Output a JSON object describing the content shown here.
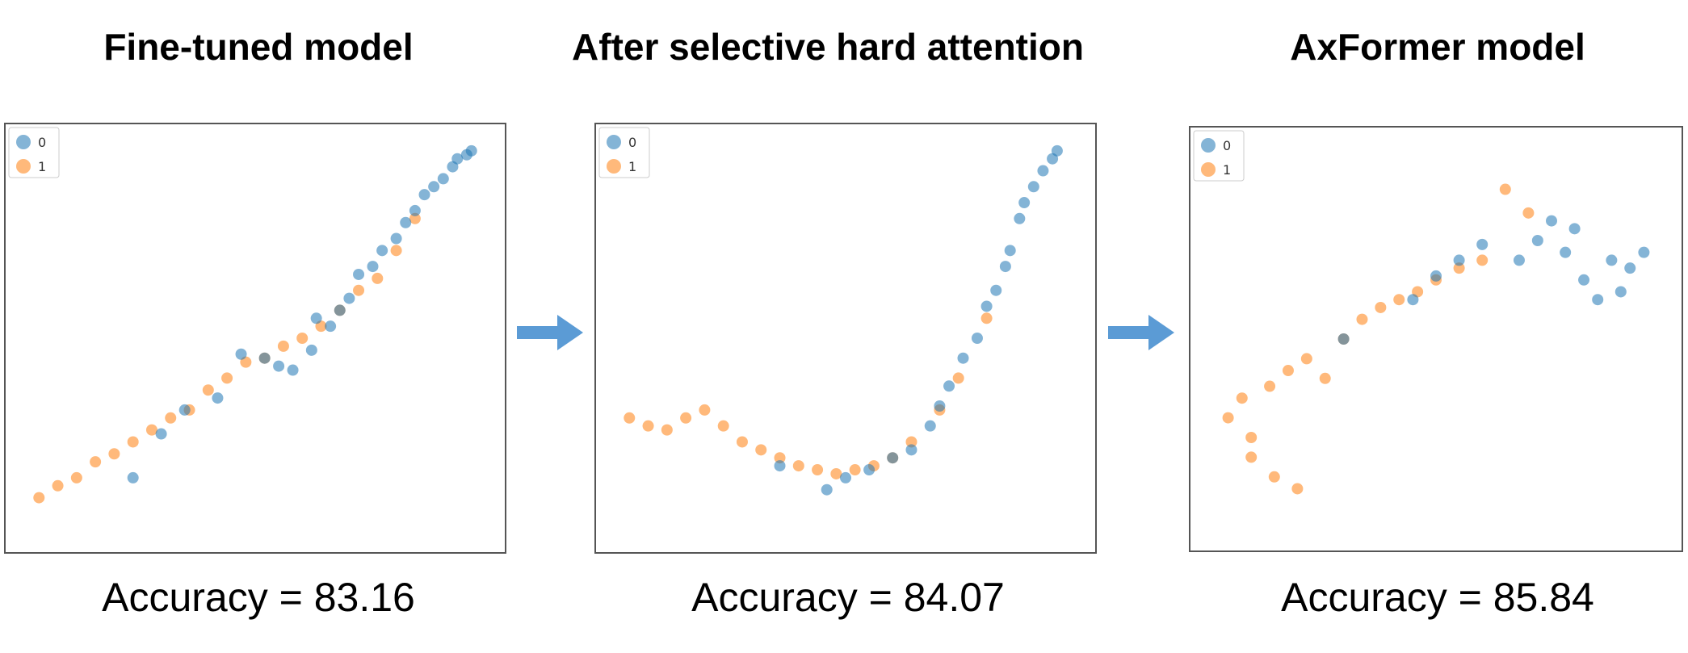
{
  "colors": {
    "class0": "#1f77b4",
    "class1": "#ff7f0e",
    "arrow": "#5b9bd5"
  },
  "panels": [
    {
      "title": "Fine-tuned model",
      "accuracy": "Accuracy = 83.16"
    },
    {
      "title": "After selective hard attention",
      "accuracy": "Accuracy = 84.07"
    },
    {
      "title": "AxFormer model",
      "accuracy": "Accuracy = 85.84"
    }
  ],
  "chart_data": [
    {
      "type": "scatter",
      "title": "Fine-tuned model",
      "legend": {
        "entries": [
          "0",
          "1"
        ],
        "placement": "top-left"
      },
      "xlim": [
        0,
        1
      ],
      "ylim": [
        0,
        1
      ],
      "grid": false,
      "series": [
        {
          "name": "0",
          "color": "#1f77b4",
          "shape": "rising-curve-upper-half",
          "x": [
            0.47,
            0.52,
            0.55,
            0.58,
            0.62,
            0.63,
            0.66,
            0.68,
            0.7,
            0.72,
            0.75,
            0.77,
            0.8,
            0.82,
            0.84,
            0.86,
            0.88,
            0.9,
            0.92,
            0.93,
            0.95,
            0.96,
            0.3,
            0.35,
            0.42,
            0.24
          ],
          "y": [
            0.46,
            0.45,
            0.43,
            0.42,
            0.47,
            0.55,
            0.53,
            0.57,
            0.6,
            0.66,
            0.68,
            0.72,
            0.75,
            0.79,
            0.82,
            0.86,
            0.88,
            0.9,
            0.93,
            0.95,
            0.96,
            0.97,
            0.26,
            0.32,
            0.35,
            0.15
          ]
        },
        {
          "name": "1",
          "color": "#ff7f0e",
          "shape": "rising-curve-lower-half",
          "x": [
            0.04,
            0.08,
            0.12,
            0.16,
            0.2,
            0.24,
            0.28,
            0.32,
            0.36,
            0.4,
            0.44,
            0.48,
            0.52,
            0.56,
            0.6,
            0.64,
            0.68,
            0.72,
            0.76,
            0.8,
            0.84
          ],
          "y": [
            0.1,
            0.13,
            0.15,
            0.19,
            0.21,
            0.24,
            0.27,
            0.3,
            0.32,
            0.37,
            0.4,
            0.44,
            0.45,
            0.48,
            0.5,
            0.53,
            0.57,
            0.62,
            0.65,
            0.72,
            0.8
          ]
        }
      ]
    },
    {
      "type": "scatter",
      "title": "After selective hard attention",
      "legend": {
        "entries": [
          "0",
          "1"
        ],
        "placement": "top-left"
      },
      "xlim": [
        0,
        1
      ],
      "ylim": [
        0,
        1
      ],
      "grid": false,
      "series": [
        {
          "name": "0",
          "color": "#1f77b4",
          "shape": "right-arm-of-u",
          "x": [
            0.5,
            0.55,
            0.6,
            0.64,
            0.68,
            0.7,
            0.72,
            0.75,
            0.78,
            0.8,
            0.82,
            0.84,
            0.85,
            0.87,
            0.88,
            0.9,
            0.92,
            0.94,
            0.95,
            0.36,
            0.46
          ],
          "y": [
            0.15,
            0.17,
            0.2,
            0.22,
            0.28,
            0.33,
            0.38,
            0.45,
            0.5,
            0.58,
            0.62,
            0.68,
            0.72,
            0.8,
            0.84,
            0.88,
            0.92,
            0.95,
            0.97,
            0.18,
            0.12
          ]
        },
        {
          "name": "1",
          "color": "#ff7f0e",
          "shape": "u-bottom-and-left-arm",
          "x": [
            0.04,
            0.08,
            0.12,
            0.16,
            0.2,
            0.24,
            0.28,
            0.32,
            0.36,
            0.4,
            0.44,
            0.48,
            0.52,
            0.56,
            0.6,
            0.64,
            0.7,
            0.74,
            0.8
          ],
          "y": [
            0.3,
            0.28,
            0.27,
            0.3,
            0.32,
            0.28,
            0.24,
            0.22,
            0.2,
            0.18,
            0.17,
            0.16,
            0.17,
            0.18,
            0.2,
            0.24,
            0.32,
            0.4,
            0.55
          ]
        }
      ]
    },
    {
      "type": "scatter",
      "title": "AxFormer model",
      "legend": {
        "entries": [
          "0",
          "1"
        ],
        "placement": "top-left"
      },
      "xlim": [
        0,
        1
      ],
      "ylim": [
        0,
        1
      ],
      "grid": false,
      "series": [
        {
          "name": "0",
          "color": "#1f77b4",
          "shape": "upper-right-cluster",
          "x": [
            0.68,
            0.72,
            0.75,
            0.78,
            0.8,
            0.82,
            0.85,
            0.88,
            0.9,
            0.92,
            0.95,
            0.5,
            0.55,
            0.6,
            0.45,
            0.3
          ],
          "y": [
            0.7,
            0.75,
            0.8,
            0.72,
            0.78,
            0.65,
            0.6,
            0.7,
            0.62,
            0.68,
            0.72,
            0.66,
            0.7,
            0.74,
            0.6,
            0.5
          ]
        },
        {
          "name": "1",
          "color": "#ff7f0e",
          "shape": "lower-left-spread",
          "x": [
            0.05,
            0.08,
            0.1,
            0.14,
            0.18,
            0.22,
            0.26,
            0.3,
            0.34,
            0.38,
            0.42,
            0.46,
            0.5,
            0.55,
            0.6,
            0.65,
            0.7,
            0.15,
            0.2,
            0.1
          ],
          "y": [
            0.3,
            0.35,
            0.25,
            0.38,
            0.42,
            0.45,
            0.4,
            0.5,
            0.55,
            0.58,
            0.6,
            0.62,
            0.65,
            0.68,
            0.7,
            0.88,
            0.82,
            0.15,
            0.12,
            0.2
          ]
        }
      ]
    }
  ]
}
